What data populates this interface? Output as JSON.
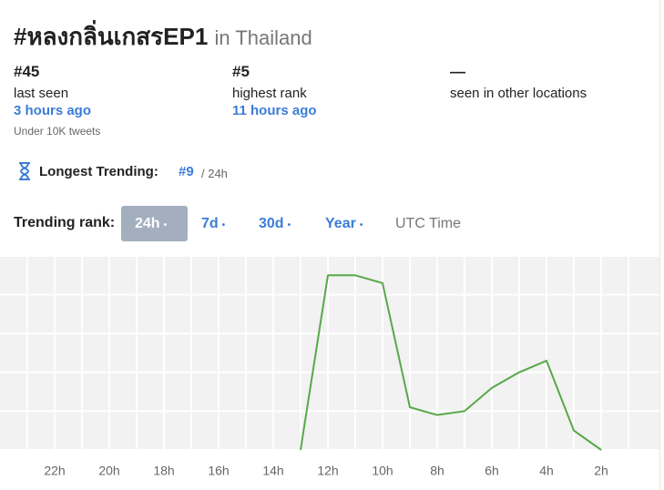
{
  "header": {
    "title": "#หลงกลิ่นเกสรEP1",
    "location": "in Thailand"
  },
  "stats": [
    {
      "value": "#45",
      "label": "last seen",
      "time": "3 hours ago",
      "note": "Under 10K tweets"
    },
    {
      "value": "#5",
      "label": "highest rank",
      "time": "11 hours ago"
    },
    {
      "value": "—",
      "label": "seen in other locations"
    }
  ],
  "longest_trending": {
    "label": "Longest Trending:",
    "rank": "#9",
    "period": "/ 24h"
  },
  "trending_rank": {
    "label": "Trending rank:",
    "tabs": [
      "24h",
      "7d",
      "30d",
      "Year"
    ],
    "timezone": "UTC Time"
  },
  "chart_data": {
    "type": "line",
    "x": [
      13,
      12,
      11,
      10,
      9,
      8,
      7,
      6,
      5,
      4,
      3,
      2
    ],
    "values": [
      50,
      5,
      5,
      7,
      39,
      41,
      40,
      34,
      30,
      27,
      45,
      50
    ],
    "xlim": [
      24,
      0
    ],
    "ylim": [
      50,
      0
    ],
    "xticks": [
      {
        "value": 22,
        "label": "22h"
      },
      {
        "value": 20,
        "label": "20h"
      },
      {
        "value": 18,
        "label": "18h"
      },
      {
        "value": 16,
        "label": "16h"
      },
      {
        "value": 14,
        "label": "14h"
      },
      {
        "value": 12,
        "label": "12h"
      },
      {
        "value": 10,
        "label": "10h"
      },
      {
        "value": 8,
        "label": "8h"
      },
      {
        "value": 6,
        "label": "6h"
      },
      {
        "value": 4,
        "label": "4h"
      },
      {
        "value": 2,
        "label": "2h"
      }
    ],
    "xminor": [
      23,
      21,
      19,
      17,
      15,
      13,
      11,
      9,
      7,
      5,
      3,
      1
    ],
    "yticks": [
      0,
      10,
      20,
      30,
      40,
      50
    ],
    "color": "#58a84a",
    "grid": true
  }
}
